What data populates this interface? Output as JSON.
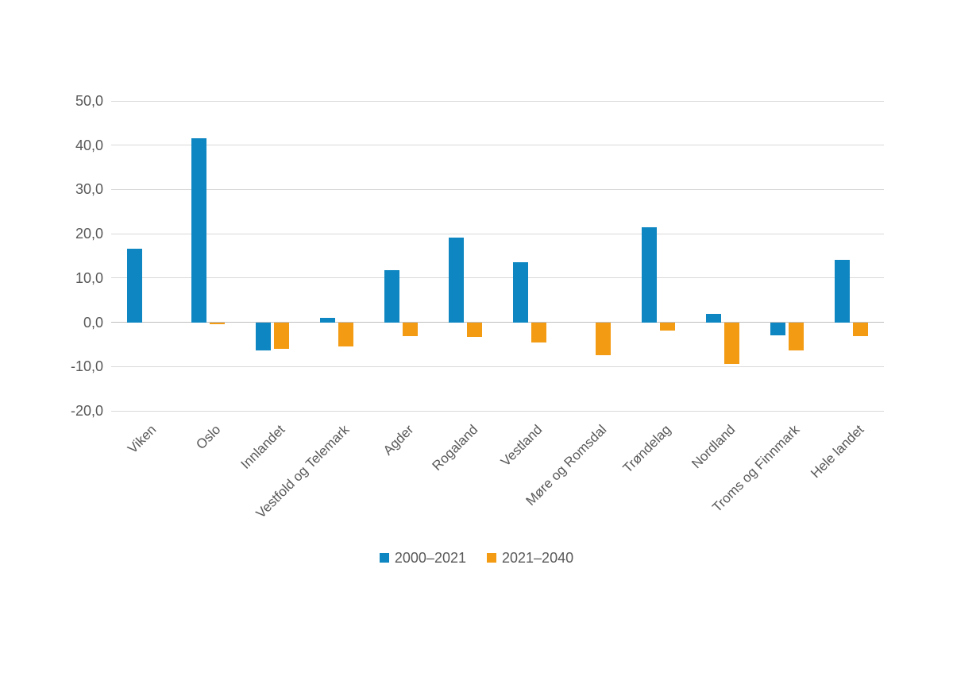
{
  "chart_data": {
    "type": "bar",
    "title": "",
    "xlabel": "",
    "ylabel": "",
    "categories": [
      "Viken",
      "Oslo",
      "Innlandet",
      "Vestfold og Telemark",
      "Agder",
      "Rogaland",
      "Vestland",
      "Møre og Romsdal",
      "Trøndelag",
      "Nordland",
      "Troms og Finnmark",
      "Hele landet"
    ],
    "series": [
      {
        "name": "2000–2021",
        "color": "#0e86c1",
        "values": [
          16.7,
          41.5,
          -6.3,
          1.0,
          11.7,
          19.2,
          13.6,
          0.0,
          21.5,
          1.9,
          -2.9,
          14.1
        ]
      },
      {
        "name": "2021–2040",
        "color": "#f39b13",
        "values": [
          0.0,
          -0.5,
          -6.0,
          -5.5,
          -3.2,
          -3.3,
          -4.5,
          -7.5,
          -1.8,
          -9.5,
          -6.4,
          -3.2
        ]
      }
    ],
    "y_axis": {
      "min": -20,
      "max": 50,
      "step": 10,
      "decimal_separator": ",",
      "tick_labels": [
        "50,0",
        "40,0",
        "30,0",
        "20,0",
        "10,0",
        "0,0",
        "-10,0",
        "-20,0"
      ]
    },
    "grid": true,
    "legend_position": "bottom",
    "colors": {
      "grid": "#d9d9d9",
      "zero_line": "#bfbfbf",
      "axis_text": "#595959",
      "background": "#ffffff"
    }
  }
}
